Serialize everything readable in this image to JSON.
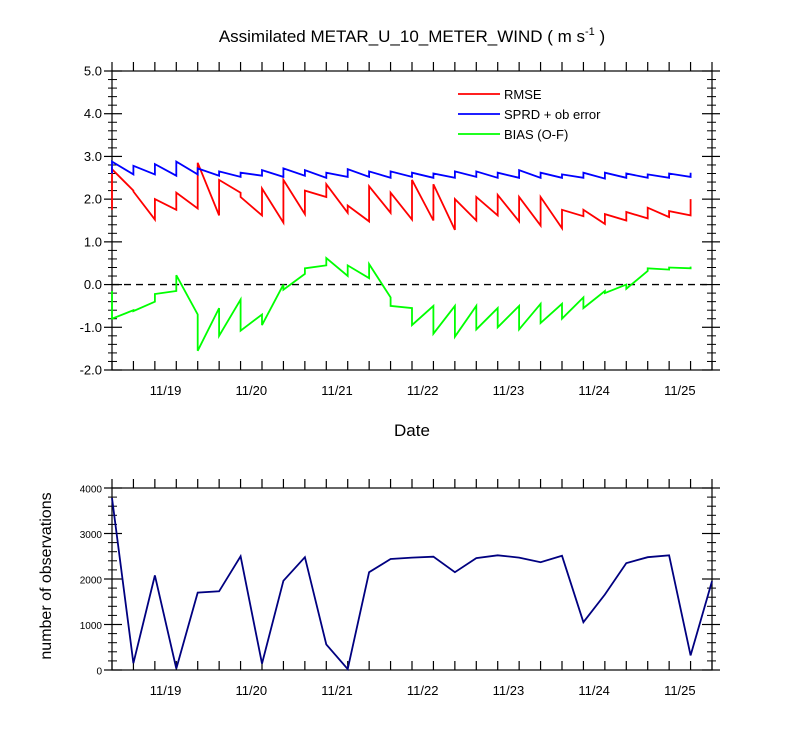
{
  "chart_data": [
    {
      "type": "line",
      "title": "Assimilated METAR_U_10_METER_WIND",
      "title_units": {
        "pre": "( m s",
        "sup": "-1",
        "post": " )"
      },
      "xlabel": "Date",
      "ylabel": "",
      "ylim": [
        -2.0,
        5.0
      ],
      "yticks": [
        -2.0,
        -1.0,
        0.0,
        1.0,
        2.0,
        3.0,
        4.0,
        5.0
      ],
      "ytick_labels": [
        "-2.0",
        "-1.0",
        "0.0",
        "1.0",
        "2.0",
        "3.0",
        "4.0",
        "5.0"
      ],
      "xlim": [
        "11/18 21:00",
        "11/25 21:00"
      ],
      "xtick_labels": [
        "11/19",
        "11/20",
        "11/21",
        "11/22",
        "11/23",
        "11/24",
        "11/25"
      ],
      "zero_line": {
        "y": 0.0,
        "style": "dashed"
      },
      "grid": false,
      "legend_position": "top-right",
      "x": [
        "11/18 21:00",
        "11/19 03:00",
        "11/19 09:00",
        "11/19 15:00",
        "11/19 21:00",
        "11/20 03:00",
        "11/20 09:00",
        "11/20 15:00",
        "11/20 21:00",
        "11/21 03:00",
        "11/21 09:00",
        "11/21 15:00",
        "11/21 21:00",
        "11/22 03:00",
        "11/22 09:00",
        "11/22 15:00",
        "11/22 21:00",
        "11/23 03:00",
        "11/23 09:00",
        "11/23 15:00",
        "11/23 21:00",
        "11/24 03:00",
        "11/24 09:00",
        "11/24 15:00",
        "11/24 21:00",
        "11/25 03:00",
        "11/25 09:00",
        "11/25 15:00"
      ],
      "series": [
        {
          "name": "RMSE",
          "color": "#ff0000",
          "prior": [
            1.75,
            2.2,
            1.52,
            1.75,
            1.78,
            1.62,
            2.15,
            1.62,
            1.45,
            1.65,
            2.05,
            1.68,
            1.48,
            1.68,
            1.52,
            1.5,
            1.28,
            1.5,
            1.62,
            1.48,
            1.38,
            1.32,
            1.6,
            1.42,
            1.5,
            1.55,
            1.58,
            1.62
          ],
          "posterior": [
            2.7,
            2.18,
            2.0,
            2.15,
            2.85,
            2.45,
            2.05,
            2.25,
            2.45,
            2.2,
            2.35,
            1.85,
            2.3,
            2.15,
            2.45,
            2.35,
            2.0,
            2.05,
            2.1,
            2.05,
            2.05,
            1.75,
            1.75,
            1.65,
            1.7,
            1.8,
            1.72,
            2.0
          ]
        },
        {
          "name": "SPRD + ob error",
          "color": "#0000ff",
          "prior": [
            2.6,
            2.58,
            2.58,
            2.55,
            2.58,
            2.55,
            2.52,
            2.55,
            2.52,
            2.55,
            2.5,
            2.52,
            2.52,
            2.5,
            2.52,
            2.5,
            2.5,
            2.52,
            2.5,
            2.5,
            2.5,
            2.5,
            2.5,
            2.48,
            2.5,
            2.5,
            2.5,
            2.52
          ],
          "posterior": [
            2.88,
            2.78,
            2.82,
            2.88,
            2.72,
            2.65,
            2.62,
            2.68,
            2.72,
            2.68,
            2.62,
            2.7,
            2.65,
            2.65,
            2.62,
            2.6,
            2.65,
            2.65,
            2.62,
            2.68,
            2.62,
            2.58,
            2.62,
            2.62,
            2.6,
            2.58,
            2.6,
            2.62
          ]
        },
        {
          "name": "BIAS (O-F)",
          "color": "#00ff00",
          "prior": [
            -0.15,
            -0.6,
            -0.4,
            -0.15,
            -0.7,
            -0.55,
            -0.35,
            -0.7,
            0.0,
            0.25,
            0.45,
            0.2,
            0.15,
            -0.3,
            -0.55,
            -0.5,
            -0.5,
            -0.5,
            -0.55,
            -0.5,
            -0.45,
            -0.45,
            -0.3,
            -0.15,
            0.0,
            0.32,
            0.35,
            0.38
          ],
          "posterior": [
            -0.8,
            -0.62,
            -0.22,
            0.22,
            -1.55,
            -1.2,
            -1.08,
            -0.95,
            -0.12,
            0.38,
            0.62,
            0.45,
            0.48,
            -0.5,
            -0.95,
            -1.15,
            -1.22,
            -1.05,
            -1.0,
            -1.05,
            -0.9,
            -0.8,
            -0.55,
            -0.2,
            -0.1,
            0.38,
            0.4,
            0.42
          ]
        }
      ]
    },
    {
      "type": "line",
      "ylabel": "number of observations",
      "xlabel": "",
      "ylim": [
        0,
        4000
      ],
      "yticks": [
        0,
        1000,
        2000,
        3000,
        4000
      ],
      "ytick_labels": [
        "0",
        "1000",
        "2000",
        "3000",
        "4000"
      ],
      "xlim": [
        "11/18 21:00",
        "11/25 21:00"
      ],
      "xtick_labels": [
        "11/19",
        "11/20",
        "11/21",
        "11/22",
        "11/23",
        "11/24",
        "11/25"
      ],
      "grid": false,
      "series": [
        {
          "color": "#000080",
          "x": [
            "11/18 21:00",
            "11/19 03:00",
            "11/19 09:00",
            "11/19 15:00",
            "11/19 21:00",
            "11/20 03:00",
            "11/20 09:00",
            "11/20 15:00",
            "11/20 21:00",
            "11/21 03:00",
            "11/21 09:00",
            "11/21 15:00",
            "11/21 21:00",
            "11/22 03:00",
            "11/22 09:00",
            "11/22 15:00",
            "11/22 21:00",
            "11/23 03:00",
            "11/23 09:00",
            "11/23 15:00",
            "11/23 21:00",
            "11/24 03:00",
            "11/24 09:00",
            "11/24 15:00",
            "11/24 21:00",
            "11/25 03:00",
            "11/25 09:00",
            "11/25 15:00",
            "11/25 21:00"
          ],
          "values": [
            3780,
            150,
            2080,
            30,
            1700,
            1730,
            2500,
            140,
            1960,
            2480,
            560,
            20,
            2150,
            2440,
            2470,
            2490,
            2150,
            2460,
            2520,
            2470,
            2370,
            2510,
            1050,
            1660,
            2350,
            2480,
            2520,
            320,
            1950
          ]
        }
      ]
    }
  ]
}
